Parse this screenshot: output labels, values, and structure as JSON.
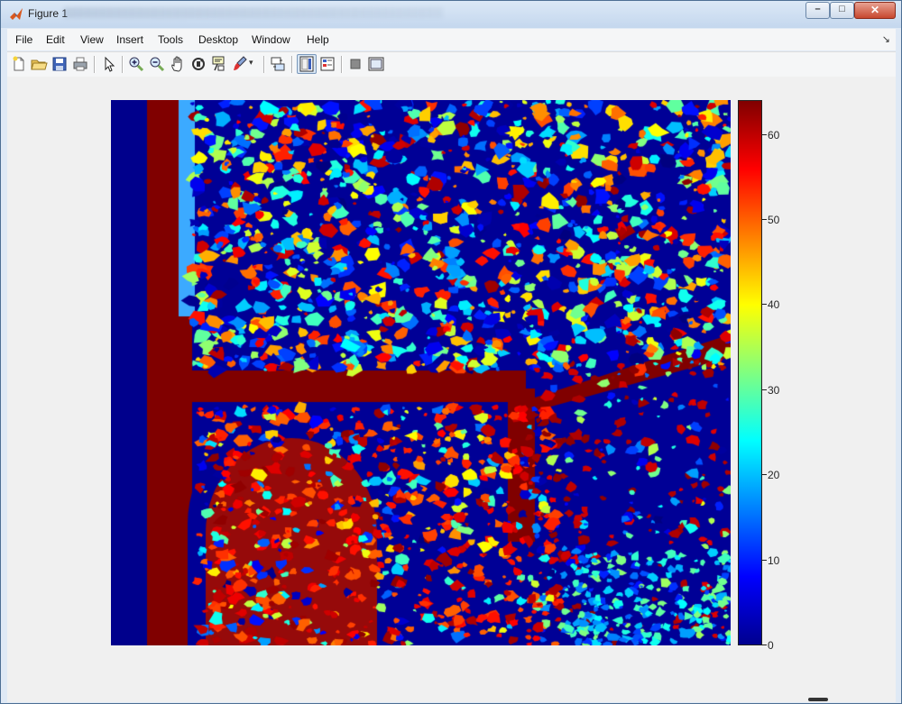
{
  "window": {
    "title": "Figure 1",
    "controls": {
      "minimize": "–",
      "maximize": "□",
      "close": "✕"
    }
  },
  "menubar": {
    "items": [
      {
        "key": "file",
        "label": "File"
      },
      {
        "key": "edit",
        "label": "Edit"
      },
      {
        "key": "view",
        "label": "View"
      },
      {
        "key": "insert",
        "label": "Insert"
      },
      {
        "key": "tools",
        "label": "Tools"
      },
      {
        "key": "desktop",
        "label": "Desktop"
      },
      {
        "key": "window",
        "label": "Window"
      },
      {
        "key": "help",
        "label": "Help"
      }
    ],
    "dock_icon": "dock-arrow-icon"
  },
  "toolbar": {
    "buttons": [
      "new-figure-icon",
      "open-file-icon",
      "save-icon",
      "print-icon",
      "edit-plot-icon",
      "zoom-in-icon",
      "zoom-out-icon",
      "pan-icon",
      "rotate-3d-icon",
      "data-cursor-icon",
      "brush-icon",
      "brush-dropdown-icon",
      "link-plot-icon",
      "colorbar-icon",
      "legend-icon",
      "hide-plot-tools-icon",
      "show-plot-tools-icon"
    ]
  },
  "figure": {
    "colormap": "jet",
    "colorbar": {
      "ticks": [
        "0",
        "10",
        "20",
        "30",
        "40",
        "50",
        "60"
      ],
      "min": 0,
      "max": 64
    }
  }
}
